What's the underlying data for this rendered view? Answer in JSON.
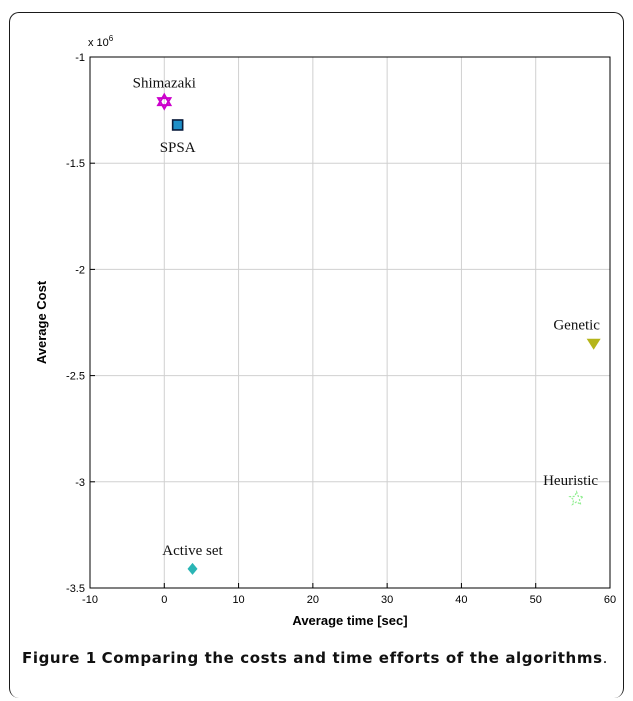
{
  "chart_data": {
    "type": "scatter",
    "xlabel": "Average time [sec]",
    "ylabel": "Average Cost",
    "y_exponent_base": "x 10",
    "y_exponent_power": "6",
    "xlim": [
      -10,
      60
    ],
    "ylim": [
      -3.5,
      -1.0
    ],
    "x_ticks": [
      -10,
      0,
      10,
      20,
      30,
      40,
      50,
      60
    ],
    "y_ticks": [
      -1,
      -1.5,
      -2,
      -2.5,
      -3,
      -3.5
    ],
    "grid": true,
    "points": [
      {
        "name": "Shimazaki",
        "x": 0.0,
        "y": -1.21,
        "marker": "hexagram",
        "color": "#cc00cc",
        "label_pos": "above"
      },
      {
        "name": "SPSA",
        "x": 1.8,
        "y": -1.32,
        "marker": "square",
        "color": "#1e8fc8",
        "label_pos": "below"
      },
      {
        "name": "Genetic",
        "x": 57.8,
        "y": -2.35,
        "marker": "triangle-down",
        "color": "#b5b51a",
        "label_pos": "above"
      },
      {
        "name": "Heuristic",
        "x": 55.5,
        "y": -3.08,
        "marker": "star",
        "color": "#90ee90",
        "label_pos": "above"
      },
      {
        "name": "Active set",
        "x": 3.8,
        "y": -3.41,
        "marker": "diamond",
        "color": "#2ab5b5",
        "label_pos": "above"
      }
    ]
  },
  "caption": {
    "label": "Figure 1",
    "text": "Comparing the costs and time efforts of the algorithms",
    "end": "."
  }
}
